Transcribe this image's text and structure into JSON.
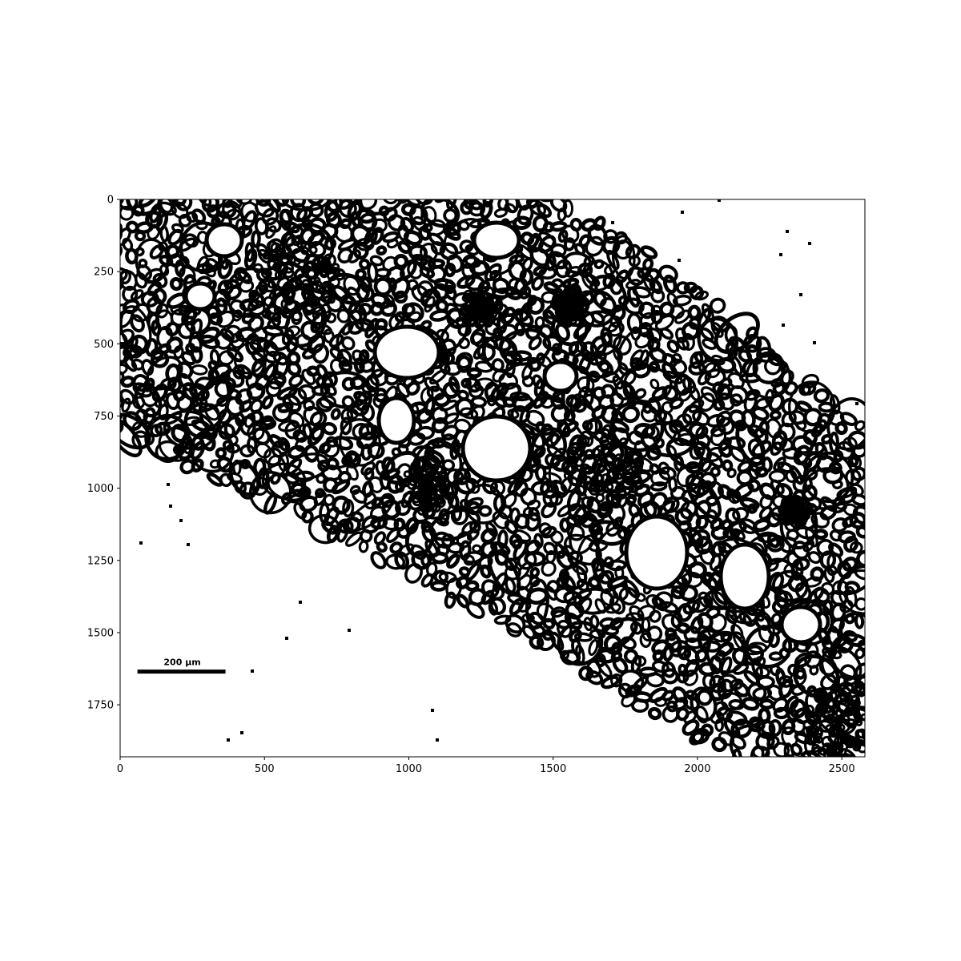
{
  "figure": {
    "type": "image-plot",
    "image_description": "Binarized edge-detection image of a plant tissue cross-section: black cell outlines on white background, tissue band running diagonally from upper-left to lower-right.",
    "x_axis": {
      "range": [
        0,
        2580
      ],
      "ticks": [
        0,
        500,
        1000,
        1500,
        2000,
        2500
      ]
    },
    "y_axis": {
      "range": [
        0,
        1930
      ],
      "inverted": true,
      "ticks": [
        0,
        250,
        500,
        750,
        1000,
        1250,
        1500,
        1750
      ]
    },
    "scale_bar": {
      "label": "200 µm",
      "x_start": 60,
      "x_end": 365,
      "y": 1635
    },
    "colors": {
      "foreground": "#000000",
      "background": "#ffffff"
    }
  }
}
